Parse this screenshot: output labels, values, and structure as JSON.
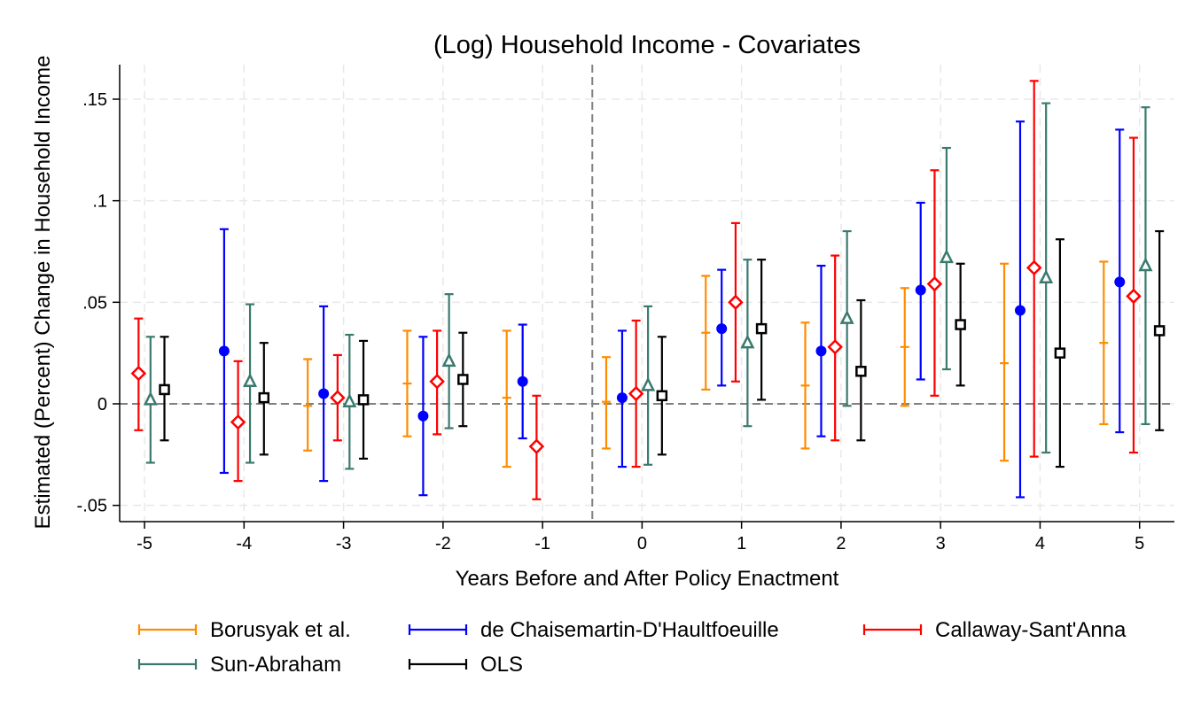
{
  "chart_data": {
    "type": "scatter",
    "title": "(Log) Household Income - Covariates",
    "xlabel": "Years Before and After Policy Enactment",
    "ylabel": "Estimated (Percent) Change in Household Income",
    "x_ticks": [
      -5,
      -4,
      -3,
      -2,
      -1,
      0,
      1,
      2,
      3,
      4,
      5
    ],
    "x_tick_labels": [
      "-5",
      "-4",
      "-3",
      "-2",
      "-1",
      "0",
      "1",
      "2",
      "3",
      "4",
      "5"
    ],
    "y_ticks": [
      -0.05,
      0,
      0.05,
      0.1,
      0.15
    ],
    "y_tick_labels": [
      "-.05",
      "0",
      ".05",
      ".1",
      ".15"
    ],
    "xlim": [
      -5.25,
      5.35
    ],
    "ylim": [
      -0.058,
      0.167
    ],
    "grid": true,
    "reference_lines": {
      "vertical_x": -0.5,
      "horizontal_y": 0
    },
    "legend_position": "bottom",
    "series": [
      {
        "name": "Borusyak et al.",
        "color": "#FF8C00",
        "marker": "none",
        "offset": -0.36,
        "points": [
          {
            "x": -3,
            "est": -0.001,
            "lo": -0.023,
            "hi": 0.022
          },
          {
            "x": -2,
            "est": 0.01,
            "lo": -0.016,
            "hi": 0.036
          },
          {
            "x": -1,
            "est": 0.003,
            "lo": -0.031,
            "hi": 0.036
          },
          {
            "x": 0,
            "est": 0.001,
            "lo": -0.022,
            "hi": 0.023
          },
          {
            "x": 1,
            "est": 0.035,
            "lo": 0.007,
            "hi": 0.063
          },
          {
            "x": 2,
            "est": 0.009,
            "lo": -0.022,
            "hi": 0.04
          },
          {
            "x": 3,
            "est": 0.028,
            "lo": -0.001,
            "hi": 0.057
          },
          {
            "x": 4,
            "est": 0.02,
            "lo": -0.028,
            "hi": 0.069
          },
          {
            "x": 5,
            "est": 0.03,
            "lo": -0.01,
            "hi": 0.07
          }
        ]
      },
      {
        "name": "de Chaisemartin-D'Haultfoeuille",
        "color": "#0000FF",
        "marker": "circle",
        "offset": -0.2,
        "points": [
          {
            "x": -4,
            "est": 0.026,
            "lo": -0.034,
            "hi": 0.086
          },
          {
            "x": -3,
            "est": 0.005,
            "lo": -0.038,
            "hi": 0.048
          },
          {
            "x": -2,
            "est": -0.006,
            "lo": -0.045,
            "hi": 0.033
          },
          {
            "x": -1,
            "est": 0.011,
            "lo": -0.017,
            "hi": 0.039
          },
          {
            "x": 0,
            "est": 0.003,
            "lo": -0.031,
            "hi": 0.036
          },
          {
            "x": 1,
            "est": 0.037,
            "lo": 0.009,
            "hi": 0.066
          },
          {
            "x": 2,
            "est": 0.026,
            "lo": -0.016,
            "hi": 0.068
          },
          {
            "x": 3,
            "est": 0.056,
            "lo": 0.012,
            "hi": 0.099
          },
          {
            "x": 4,
            "est": 0.046,
            "lo": -0.046,
            "hi": 0.139
          },
          {
            "x": 5,
            "est": 0.06,
            "lo": -0.014,
            "hi": 0.135
          }
        ]
      },
      {
        "name": "Callaway-Sant'Anna",
        "color": "#FF0000",
        "marker": "diamond",
        "offset": -0.06,
        "points": [
          {
            "x": -5,
            "est": 0.015,
            "lo": -0.013,
            "hi": 0.042
          },
          {
            "x": -4,
            "est": -0.009,
            "lo": -0.038,
            "hi": 0.021
          },
          {
            "x": -3,
            "est": 0.003,
            "lo": -0.018,
            "hi": 0.024
          },
          {
            "x": -2,
            "est": 0.011,
            "lo": -0.015,
            "hi": 0.036
          },
          {
            "x": -1,
            "est": -0.021,
            "lo": -0.047,
            "hi": 0.004
          },
          {
            "x": 0,
            "est": 0.005,
            "lo": -0.031,
            "hi": 0.041
          },
          {
            "x": 1,
            "est": 0.05,
            "lo": 0.011,
            "hi": 0.089
          },
          {
            "x": 2,
            "est": 0.028,
            "lo": -0.018,
            "hi": 0.073
          },
          {
            "x": 3,
            "est": 0.059,
            "lo": 0.004,
            "hi": 0.115
          },
          {
            "x": 4,
            "est": 0.067,
            "lo": -0.026,
            "hi": 0.159
          },
          {
            "x": 5,
            "est": 0.053,
            "lo": -0.024,
            "hi": 0.131
          }
        ]
      },
      {
        "name": "Sun-Abraham",
        "color": "#3A7A6E",
        "marker": "triangle",
        "offset": 0.06,
        "points": [
          {
            "x": -5,
            "est": 0.002,
            "lo": -0.029,
            "hi": 0.033
          },
          {
            "x": -4,
            "est": 0.011,
            "lo": -0.029,
            "hi": 0.049
          },
          {
            "x": -3,
            "est": 0.001,
            "lo": -0.032,
            "hi": 0.034
          },
          {
            "x": -2,
            "est": 0.021,
            "lo": -0.012,
            "hi": 0.054
          },
          {
            "x": 0,
            "est": 0.009,
            "lo": -0.03,
            "hi": 0.048
          },
          {
            "x": 1,
            "est": 0.03,
            "lo": -0.011,
            "hi": 0.071
          },
          {
            "x": 2,
            "est": 0.042,
            "lo": -0.001,
            "hi": 0.085
          },
          {
            "x": 3,
            "est": 0.072,
            "lo": 0.017,
            "hi": 0.126
          },
          {
            "x": 4,
            "est": 0.062,
            "lo": -0.024,
            "hi": 0.148
          },
          {
            "x": 5,
            "est": 0.068,
            "lo": -0.01,
            "hi": 0.146
          }
        ]
      },
      {
        "name": "OLS",
        "color": "#000000",
        "marker": "square",
        "offset": 0.2,
        "points": [
          {
            "x": -5,
            "est": 0.007,
            "lo": -0.018,
            "hi": 0.033
          },
          {
            "x": -4,
            "est": 0.003,
            "lo": -0.025,
            "hi": 0.03
          },
          {
            "x": -3,
            "est": 0.002,
            "lo": -0.027,
            "hi": 0.031
          },
          {
            "x": -2,
            "est": 0.012,
            "lo": -0.011,
            "hi": 0.035
          },
          {
            "x": 0,
            "est": 0.004,
            "lo": -0.025,
            "hi": 0.033
          },
          {
            "x": 1,
            "est": 0.037,
            "lo": 0.002,
            "hi": 0.071
          },
          {
            "x": 2,
            "est": 0.016,
            "lo": -0.018,
            "hi": 0.051
          },
          {
            "x": 3,
            "est": 0.039,
            "lo": 0.009,
            "hi": 0.069
          },
          {
            "x": 4,
            "est": 0.025,
            "lo": -0.031,
            "hi": 0.081
          },
          {
            "x": 5,
            "est": 0.036,
            "lo": -0.013,
            "hi": 0.085
          }
        ]
      }
    ]
  }
}
